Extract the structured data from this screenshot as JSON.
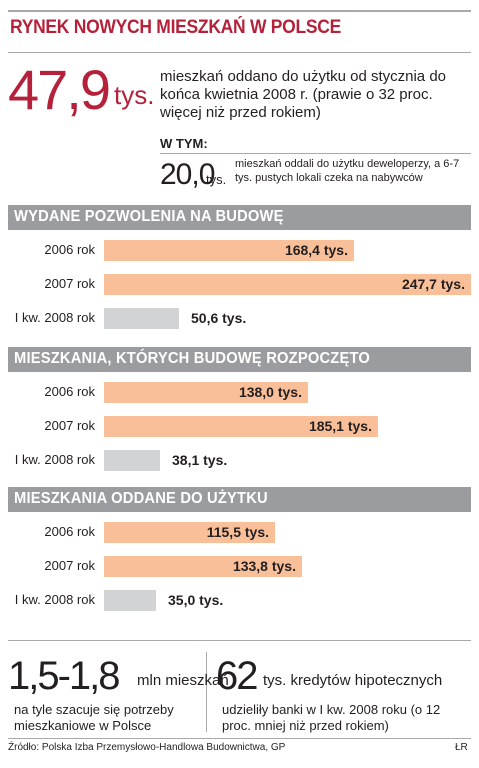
{
  "header": {
    "title": "RYNEK NOWYCH MIESZKAŃ W POLSCE"
  },
  "lead": {
    "value": "47,9",
    "unit": "tys.",
    "text": "mieszkań oddano do użytku od stycznia do końca kwietnia 2008 r. (prawie  o 32 proc. więcej niż przed rokiem)"
  },
  "subset": {
    "heading": "W TYM:",
    "value": "20,0",
    "unit": "tys.",
    "text": "mieszkań oddali do użytku deweloperzy, a 6-7 tys. pustych lokali czeka na nabywców"
  },
  "colors": {
    "accent": "#b5213a",
    "bar_main": "#f9bf98",
    "bar_latest": "#d1d3d4",
    "header_bar": "#9a9c9f"
  },
  "chart_data": [
    {
      "type": "bar",
      "title": "WYDANE POZWOLENIA NA BUDOWĘ",
      "categories": [
        "2006 rok",
        "2007 rok",
        "I kw. 2008 rok"
      ],
      "values": [
        168.4,
        247.7,
        50.6
      ],
      "labels": [
        "168,4 tys.",
        "247,7 tys.",
        "50,6 tys."
      ]
    },
    {
      "type": "bar",
      "title": "MIESZKANIA, KTÓRYCH BUDOWĘ ROZPOCZĘTO",
      "categories": [
        "2006 rok",
        "2007 rok",
        "I kw. 2008 rok"
      ],
      "values": [
        138.0,
        185.1,
        38.1
      ],
      "labels": [
        "138,0 tys.",
        "185,1 tys.",
        "38,1 tys."
      ]
    },
    {
      "type": "bar",
      "title": "MIESZKANIA ODDANE DO UŻYTKU",
      "categories": [
        "2006 rok",
        "2007 rok",
        "I kw. 2008 rok"
      ],
      "values": [
        115.5,
        133.8,
        35.0
      ],
      "labels": [
        "115,5 tys.",
        "133,8 tys.",
        "35,0 tys."
      ]
    }
  ],
  "footer": {
    "left": {
      "value": "1,5-1,8",
      "unit": "mln mieszkań",
      "text": "na tyle szacuje się potrzeby mieszkaniowe w Polsce"
    },
    "right": {
      "value": "62",
      "unit": "tys. kredytów hipotecznych",
      "text": "udzieliły banki w I kw. 2008 roku (o 12 proc. mniej niż przed rokiem)"
    },
    "source": "Źródło: Polska Izba Przemysłowo-Handlowa Budownictwa, GP",
    "author": "ŁR"
  }
}
